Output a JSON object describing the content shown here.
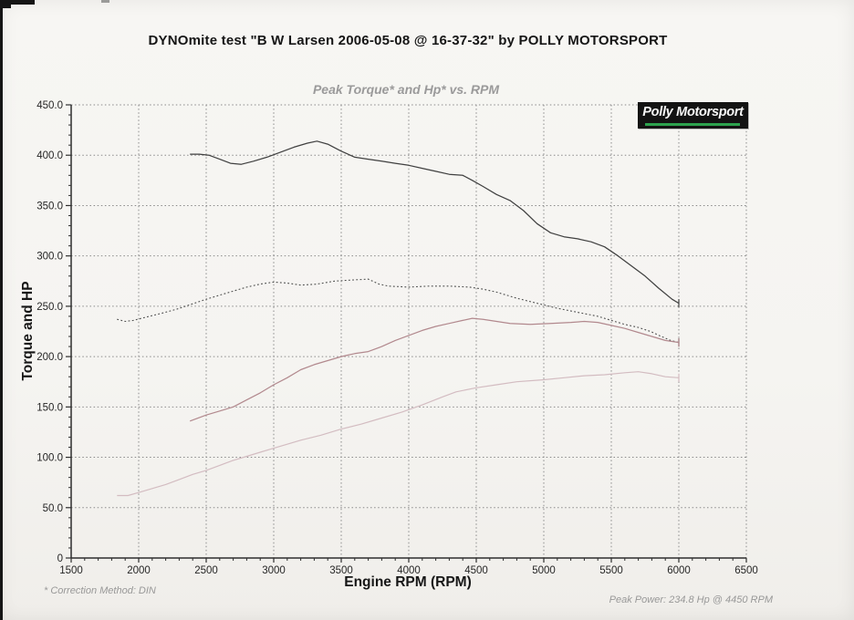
{
  "page": {
    "title": "DYNOmite test \"B W Larsen 2006-05-08 @ 16-37-32\" by POLLY MOTORSPORT",
    "footnote_left": "* Correction Method: DIN",
    "footnote_right": "Peak Power: 234.8 Hp @ 4450 RPM"
  },
  "logo": {
    "text": "Polly Motorsport",
    "background": "#131313",
    "text_color": "#f7f7f7",
    "underline_color": "#2da24e"
  },
  "chart_data": {
    "type": "line",
    "title": "Peak Torque* and Hp* vs. RPM",
    "xlabel": "Engine RPM (RPM)",
    "ylabel": "Torque and HP",
    "xlim": [
      1500,
      6500
    ],
    "ylim": [
      0,
      450
    ],
    "x_ticks": [
      1500,
      2000,
      2500,
      3000,
      3500,
      4000,
      4500,
      5000,
      5500,
      6000,
      6500
    ],
    "x_tick_labels": [
      "1500",
      "2000",
      "2500",
      "3000",
      "3500",
      "4000",
      "4500",
      "5000",
      "5500",
      "6000",
      "6500"
    ],
    "x_minor_step": 100,
    "y_ticks": [
      0,
      50,
      100,
      150,
      200,
      250,
      300,
      350,
      400,
      450
    ],
    "y_tick_labels": [
      "0",
      "50.0",
      "100.0",
      "150.0",
      "200.0",
      "250.0",
      "300.0",
      "350.0",
      "400.0",
      "450.0"
    ],
    "y_minor_step": 10,
    "grid": "dotted",
    "grid_color": "#8a8a8a",
    "axis_color": "#2e2e2e",
    "legend": "none",
    "peak_power_hp": 234.8,
    "peak_power_rpm": 4450,
    "series": [
      {
        "name": "torque-run-a-solid",
        "color": "#404040",
        "dash": "solid",
        "width": 1.25,
        "points": [
          [
            2380,
            401
          ],
          [
            2450,
            401
          ],
          [
            2520,
            400
          ],
          [
            2600,
            396
          ],
          [
            2680,
            392
          ],
          [
            2760,
            391
          ],
          [
            2850,
            394
          ],
          [
            2950,
            398
          ],
          [
            3050,
            403
          ],
          [
            3150,
            408
          ],
          [
            3250,
            412
          ],
          [
            3320,
            414
          ],
          [
            3400,
            411
          ],
          [
            3500,
            404
          ],
          [
            3600,
            398
          ],
          [
            3700,
            396
          ],
          [
            3800,
            394
          ],
          [
            3900,
            392
          ],
          [
            4000,
            390
          ],
          [
            4100,
            387
          ],
          [
            4200,
            384
          ],
          [
            4300,
            381
          ],
          [
            4400,
            380
          ],
          [
            4470,
            375
          ],
          [
            4550,
            369
          ],
          [
            4650,
            361
          ],
          [
            4750,
            355
          ],
          [
            4850,
            345
          ],
          [
            4950,
            332
          ],
          [
            5050,
            323
          ],
          [
            5150,
            319
          ],
          [
            5250,
            317
          ],
          [
            5350,
            314
          ],
          [
            5450,
            309
          ],
          [
            5550,
            300
          ],
          [
            5650,
            290
          ],
          [
            5750,
            280
          ],
          [
            5850,
            268
          ],
          [
            5950,
            257
          ],
          [
            6000,
            253
          ]
        ]
      },
      {
        "name": "torque-run-b-dashed",
        "color": "#4d4d4d",
        "dash": "dotted",
        "width": 1.1,
        "points": [
          [
            1840,
            237
          ],
          [
            1900,
            235
          ],
          [
            1960,
            236
          ],
          [
            2050,
            239
          ],
          [
            2170,
            243
          ],
          [
            2280,
            247
          ],
          [
            2390,
            252
          ],
          [
            2500,
            257
          ],
          [
            2600,
            261
          ],
          [
            2700,
            265
          ],
          [
            2800,
            269
          ],
          [
            2900,
            272
          ],
          [
            3000,
            274
          ],
          [
            3100,
            273
          ],
          [
            3200,
            271
          ],
          [
            3320,
            272
          ],
          [
            3450,
            275
          ],
          [
            3570,
            276
          ],
          [
            3700,
            277
          ],
          [
            3780,
            272
          ],
          [
            3850,
            270
          ],
          [
            4000,
            269
          ],
          [
            4150,
            270
          ],
          [
            4300,
            270
          ],
          [
            4450,
            269
          ],
          [
            4550,
            267
          ],
          [
            4650,
            264
          ],
          [
            4800,
            258
          ],
          [
            4950,
            253
          ],
          [
            5100,
            248
          ],
          [
            5250,
            244
          ],
          [
            5400,
            240
          ],
          [
            5500,
            236
          ],
          [
            5600,
            232
          ],
          [
            5700,
            229
          ],
          [
            5790,
            225
          ],
          [
            5870,
            220
          ],
          [
            5940,
            216
          ],
          [
            6000,
            214
          ]
        ]
      },
      {
        "name": "hp-run-a-solid",
        "color": "#b2898e",
        "dash": "solid",
        "width": 1.25,
        "points": [
          [
            2380,
            136
          ],
          [
            2500,
            142
          ],
          [
            2600,
            146
          ],
          [
            2700,
            150
          ],
          [
            2800,
            157
          ],
          [
            2900,
            164
          ],
          [
            3000,
            172
          ],
          [
            3100,
            179
          ],
          [
            3200,
            187
          ],
          [
            3300,
            192
          ],
          [
            3400,
            196
          ],
          [
            3500,
            200
          ],
          [
            3600,
            203
          ],
          [
            3700,
            205
          ],
          [
            3800,
            210
          ],
          [
            3900,
            216
          ],
          [
            4000,
            221
          ],
          [
            4100,
            226
          ],
          [
            4200,
            230
          ],
          [
            4300,
            233
          ],
          [
            4400,
            236
          ],
          [
            4470,
            238
          ],
          [
            4550,
            237
          ],
          [
            4650,
            235
          ],
          [
            4750,
            233
          ],
          [
            4900,
            232
          ],
          [
            5050,
            233
          ],
          [
            5200,
            234
          ],
          [
            5300,
            235
          ],
          [
            5400,
            234
          ],
          [
            5500,
            231
          ],
          [
            5600,
            228
          ],
          [
            5700,
            224
          ],
          [
            5800,
            220
          ],
          [
            5900,
            216
          ],
          [
            6000,
            214
          ]
        ]
      },
      {
        "name": "hp-run-b-light",
        "color": "#d3bcc1",
        "dash": "solid",
        "width": 1.2,
        "points": [
          [
            1840,
            62
          ],
          [
            1920,
            62
          ],
          [
            2000,
            65
          ],
          [
            2100,
            69
          ],
          [
            2200,
            73
          ],
          [
            2300,
            78
          ],
          [
            2400,
            83
          ],
          [
            2500,
            87
          ],
          [
            2600,
            92
          ],
          [
            2700,
            97
          ],
          [
            2800,
            101
          ],
          [
            2900,
            105
          ],
          [
            3000,
            109
          ],
          [
            3100,
            113
          ],
          [
            3200,
            117
          ],
          [
            3350,
            122
          ],
          [
            3500,
            128
          ],
          [
            3650,
            133
          ],
          [
            3800,
            139
          ],
          [
            3950,
            145
          ],
          [
            4100,
            152
          ],
          [
            4250,
            160
          ],
          [
            4350,
            165
          ],
          [
            4500,
            169
          ],
          [
            4650,
            172
          ],
          [
            4800,
            175
          ],
          [
            5000,
            177
          ],
          [
            5150,
            179
          ],
          [
            5300,
            181
          ],
          [
            5450,
            182
          ],
          [
            5600,
            184
          ],
          [
            5700,
            185
          ],
          [
            5800,
            183
          ],
          [
            5900,
            180
          ],
          [
            6000,
            179
          ]
        ]
      }
    ]
  }
}
